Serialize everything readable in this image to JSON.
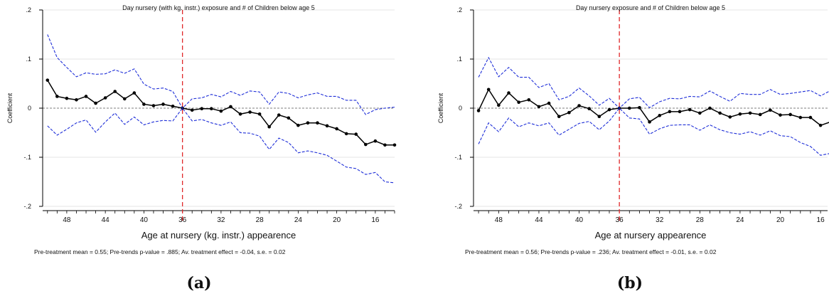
{
  "chart_data": [
    {
      "type": "line",
      "title": "Day nursery (with kg. instr.) exposure and # of Children below age 5",
      "xlabel": "Age at nursery (kg. instr.) appearence",
      "ylabel": "Coefficient",
      "x_reversed": true,
      "xlim": [
        50.5,
        14
      ],
      "ylim": [
        -0.2,
        0.2
      ],
      "xticks": [
        "48",
        "44",
        "40",
        "36",
        "32",
        "28",
        "24",
        "20",
        "16"
      ],
      "yticks": [
        ".2",
        ".1",
        "0",
        "-.1",
        "-.2"
      ],
      "event_line_x": 36,
      "x": [
        50,
        49,
        48,
        47,
        46,
        45,
        44,
        43,
        42,
        41,
        40,
        39,
        38,
        37,
        36,
        35,
        34,
        33,
        32,
        31,
        30,
        29,
        28,
        27,
        26,
        25,
        24,
        23,
        22,
        21,
        20,
        19,
        18,
        17,
        16,
        15,
        14
      ],
      "series": [
        {
          "role": "estimate",
          "color": "#000000",
          "values": [
            0.057,
            0.024,
            0.02,
            0.017,
            0.024,
            0.01,
            0.021,
            0.034,
            0.019,
            0.031,
            0.008,
            0.005,
            0.008,
            0.004,
            0.0,
            -0.004,
            -0.001,
            -0.001,
            -0.006,
            0.003,
            -0.012,
            -0.008,
            -0.012,
            -0.038,
            -0.014,
            -0.02,
            -0.035,
            -0.03,
            -0.03,
            -0.036,
            -0.042,
            -0.052,
            -0.053,
            -0.074,
            -0.067,
            -0.075,
            -0.075
          ]
        },
        {
          "role": "upper_ci",
          "color": "#1f2fd8",
          "values": [
            0.15,
            0.103,
            0.083,
            0.064,
            0.072,
            0.069,
            0.07,
            0.078,
            0.071,
            0.08,
            0.049,
            0.039,
            0.041,
            0.034,
            0.0,
            0.019,
            0.021,
            0.028,
            0.023,
            0.034,
            0.026,
            0.035,
            0.033,
            0.008,
            0.033,
            0.03,
            0.021,
            0.027,
            0.031,
            0.024,
            0.024,
            0.016,
            0.016,
            -0.013,
            -0.003,
            0.0,
            0.002
          ]
        },
        {
          "role": "lower_ci",
          "color": "#1f2fd8",
          "values": [
            -0.036,
            -0.055,
            -0.043,
            -0.03,
            -0.024,
            -0.049,
            -0.028,
            -0.01,
            -0.033,
            -0.018,
            -0.034,
            -0.028,
            -0.025,
            -0.026,
            0.0,
            -0.026,
            -0.023,
            -0.03,
            -0.035,
            -0.028,
            -0.05,
            -0.051,
            -0.057,
            -0.084,
            -0.061,
            -0.07,
            -0.091,
            -0.087,
            -0.091,
            -0.096,
            -0.108,
            -0.12,
            -0.123,
            -0.135,
            -0.131,
            -0.15,
            -0.152
          ]
        }
      ],
      "note": "Pre-treatment mean =  0.55; Pre-trends p-value =  .885; Av. treatment effect = -0.04, s.e. =  0.02",
      "caption": "(a)"
    },
    {
      "type": "line",
      "title": "Day nursery exposure and # of Children below age 5",
      "xlabel": "Age at nursery appearence",
      "ylabel": "Coefficient",
      "x_reversed": true,
      "xlim": [
        50.5,
        15.3
      ],
      "ylim": [
        -0.2,
        0.2
      ],
      "xticks": [
        "48",
        "44",
        "40",
        "36",
        "32",
        "28",
        "24",
        "20",
        "16"
      ],
      "yticks": [
        ".2",
        ".1",
        "0",
        "-.1",
        "-.2"
      ],
      "event_line_x": 36,
      "x": [
        50,
        49,
        48,
        47,
        46,
        45,
        44,
        43,
        42,
        41,
        40,
        39,
        38,
        37,
        36,
        35,
        34,
        33,
        32,
        31,
        30,
        29,
        28,
        27,
        26,
        25,
        24,
        23,
        22,
        21,
        20,
        19,
        18,
        17,
        16,
        15
      ],
      "series": [
        {
          "role": "estimate",
          "color": "#000000",
          "values": [
            -0.005,
            0.038,
            0.006,
            0.031,
            0.012,
            0.017,
            0.003,
            0.01,
            -0.017,
            -0.009,
            0.005,
            -0.001,
            -0.017,
            -0.003,
            0.0,
            0.0,
            0.001,
            -0.028,
            -0.015,
            -0.007,
            -0.007,
            -0.003,
            -0.01,
            0.0,
            -0.01,
            -0.018,
            -0.012,
            -0.01,
            -0.013,
            -0.004,
            -0.014,
            -0.013,
            -0.019,
            -0.019,
            -0.035,
            -0.028
          ]
        },
        {
          "role": "upper_ci",
          "color": "#1f2fd8",
          "values": [
            0.063,
            0.103,
            0.064,
            0.083,
            0.063,
            0.063,
            0.042,
            0.05,
            0.017,
            0.024,
            0.041,
            0.025,
            0.006,
            0.02,
            0.0,
            0.019,
            0.022,
            0.001,
            0.013,
            0.02,
            0.019,
            0.024,
            0.023,
            0.035,
            0.024,
            0.014,
            0.03,
            0.028,
            0.028,
            0.038,
            0.028,
            0.03,
            0.033,
            0.036,
            0.025,
            0.036
          ]
        },
        {
          "role": "lower_ci",
          "color": "#1f2fd8",
          "values": [
            -0.073,
            -0.03,
            -0.048,
            -0.02,
            -0.038,
            -0.03,
            -0.036,
            -0.03,
            -0.055,
            -0.043,
            -0.031,
            -0.027,
            -0.044,
            -0.026,
            0.0,
            -0.02,
            -0.022,
            -0.053,
            -0.042,
            -0.035,
            -0.034,
            -0.034,
            -0.045,
            -0.034,
            -0.044,
            -0.05,
            -0.053,
            -0.048,
            -0.055,
            -0.046,
            -0.056,
            -0.058,
            -0.07,
            -0.078,
            -0.096,
            -0.092
          ]
        }
      ],
      "note": "Pre-treatment mean =  0.56; Pre-trends p-value =  .236; Av. treatment effect = -0.01, s.e. =  0.02",
      "caption": "(b)"
    }
  ]
}
